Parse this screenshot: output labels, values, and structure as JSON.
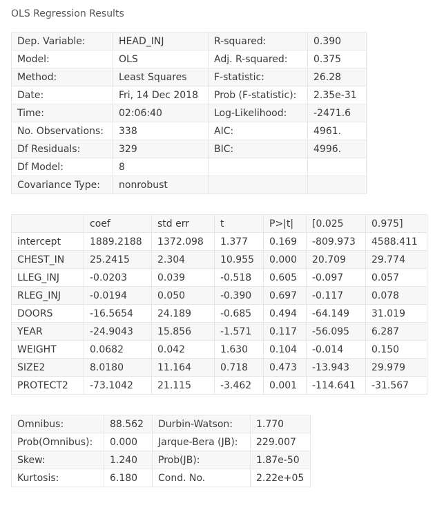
{
  "title": "OLS Regression Results",
  "summary_table": [
    [
      "Dep. Variable:",
      "HEAD_INJ",
      "R-squared:",
      "0.390"
    ],
    [
      "Model:",
      "OLS",
      "Adj. R-squared:",
      "0.375"
    ],
    [
      "Method:",
      "Least Squares",
      "F-statistic:",
      "26.28"
    ],
    [
      "Date:",
      "Fri, 14 Dec 2018",
      "Prob (F-statistic):",
      "2.35e-31"
    ],
    [
      "Time:",
      "02:06:40",
      "Log-Likelihood:",
      "-2471.6"
    ],
    [
      "No. Observations:",
      "338",
      "AIC:",
      "4961."
    ],
    [
      "Df Residuals:",
      "329",
      "BIC:",
      "4996."
    ],
    [
      "Df Model:",
      "8",
      "",
      ""
    ],
    [
      "Covariance Type:",
      "nonrobust",
      "",
      ""
    ]
  ],
  "coef_table": [
    [
      "",
      "coef",
      "std err",
      "t",
      "P>|t|",
      "[0.025",
      "0.975]"
    ],
    [
      "intercept",
      "1889.2188",
      "1372.098",
      "1.377",
      "0.169",
      "-809.973",
      "4588.411"
    ],
    [
      "CHEST_IN",
      "25.2415",
      "2.304",
      "10.955",
      "0.000",
      "20.709",
      "29.774"
    ],
    [
      "LLEG_INJ",
      "-0.0203",
      "0.039",
      "-0.518",
      "0.605",
      "-0.097",
      "0.057"
    ],
    [
      "RLEG_INJ",
      "-0.0194",
      "0.050",
      "-0.390",
      "0.697",
      "-0.117",
      "0.078"
    ],
    [
      "DOORS",
      "-16.5654",
      "24.189",
      "-0.685",
      "0.494",
      "-64.149",
      "31.019"
    ],
    [
      "YEAR",
      "-24.9043",
      "15.856",
      "-1.571",
      "0.117",
      "-56.095",
      "6.287"
    ],
    [
      "WEIGHT",
      "0.0682",
      "0.042",
      "1.630",
      "0.104",
      "-0.014",
      "0.150"
    ],
    [
      "SIZE2",
      "8.0180",
      "11.164",
      "0.718",
      "0.473",
      "-13.943",
      "29.979"
    ],
    [
      "PROTECT2",
      "-73.1042",
      "21.115",
      "-3.462",
      "0.001",
      "-114.641",
      "-31.567"
    ]
  ],
  "diag_table": [
    [
      "Omnibus:",
      "88.562",
      "Durbin-Watson:",
      "1.770"
    ],
    [
      "Prob(Omnibus):",
      "0.000",
      "Jarque-Bera (JB):",
      "229.007"
    ],
    [
      "Skew:",
      "1.240",
      "Prob(JB):",
      "1.87e-50"
    ],
    [
      "Kurtosis:",
      "6.180",
      "Cond. No.",
      "2.22e+05"
    ]
  ]
}
